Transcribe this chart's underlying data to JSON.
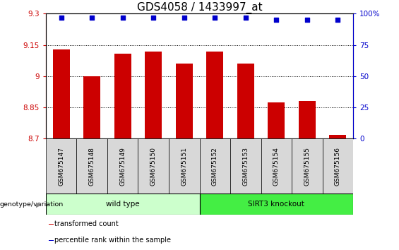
{
  "title": "GDS4058 / 1433997_at",
  "samples": [
    "GSM675147",
    "GSM675148",
    "GSM675149",
    "GSM675150",
    "GSM675151",
    "GSM675152",
    "GSM675153",
    "GSM675154",
    "GSM675155",
    "GSM675156"
  ],
  "bar_values": [
    9.13,
    9.0,
    9.11,
    9.12,
    9.06,
    9.12,
    9.06,
    8.875,
    8.88,
    8.72
  ],
  "percentile_values": [
    97,
    97,
    97,
    97,
    97,
    97,
    97,
    95,
    95,
    95
  ],
  "ylim_left": [
    8.7,
    9.3
  ],
  "ylim_right": [
    0,
    100
  ],
  "yticks_left": [
    8.7,
    8.85,
    9.0,
    9.15,
    9.3
  ],
  "yticks_right": [
    0,
    25,
    50,
    75,
    100
  ],
  "yticklabels_left": [
    "8.7",
    "8.85",
    "9",
    "9.15",
    "9.3"
  ],
  "yticklabels_right": [
    "0",
    "25",
    "50",
    "75",
    "100%"
  ],
  "bar_color": "#cc0000",
  "percentile_color": "#0000cc",
  "bar_bottom": 8.7,
  "groups": [
    {
      "label": "wild type",
      "start": 0,
      "end": 5,
      "color": "#ccffcc"
    },
    {
      "label": "SIRT3 knockout",
      "start": 5,
      "end": 10,
      "color": "#44ee44"
    }
  ],
  "group_header": "genotype/variation",
  "legend_items": [
    {
      "color": "#cc0000",
      "label": "transformed count"
    },
    {
      "color": "#0000cc",
      "label": "percentile rank within the sample"
    }
  ],
  "grid_lines": [
    8.85,
    9.0,
    9.15
  ],
  "title_fontsize": 11,
  "tick_fontsize": 7.5,
  "label_fontsize": 8.5
}
